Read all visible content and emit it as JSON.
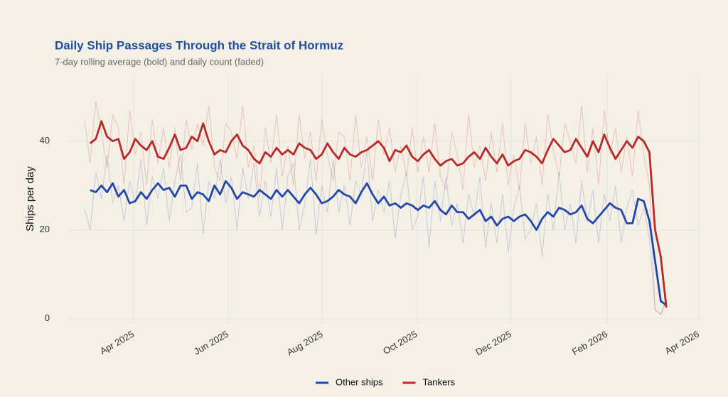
{
  "chart_data": {
    "type": "line",
    "title": "Daily Ship Passages Through the Strait of Hormuz",
    "subtitle": "7-day rolling average (bold) and daily count (faded)",
    "y_label": "Ships per day",
    "x": [
      2025.16,
      2025.17,
      2025.18,
      2025.19,
      2025.2,
      2025.21,
      2025.22,
      2025.23,
      2025.24,
      2025.25,
      2025.26,
      2025.27,
      2025.28,
      2025.29,
      2025.3,
      2025.31,
      2025.32,
      2025.33,
      2025.34,
      2025.35,
      2025.36,
      2025.37,
      2025.38,
      2025.39,
      2025.4,
      2025.41,
      2025.42,
      2025.43,
      2025.44,
      2025.45,
      2025.46,
      2025.47,
      2025.48,
      2025.49,
      2025.5,
      2025.51,
      2025.52,
      2025.53,
      2025.54,
      2025.55,
      2025.56,
      2025.57,
      2025.58,
      2025.59,
      2025.6,
      2025.61,
      2025.62,
      2025.63,
      2025.64,
      2025.65,
      2025.66,
      2025.67,
      2025.68,
      2025.69,
      2025.7,
      2025.71,
      2025.72,
      2025.73,
      2025.74,
      2025.75,
      2025.76,
      2025.77,
      2025.78,
      2025.79,
      2025.8,
      2025.81,
      2025.82,
      2025.83,
      2025.84,
      2025.85,
      2025.86,
      2025.87,
      2025.88,
      2025.89,
      2025.9,
      2025.91,
      2025.92,
      2025.93,
      2025.94,
      2025.95,
      2025.96,
      2025.97,
      2025.98,
      2025.99,
      2026.0,
      2026.01,
      2026.02,
      2026.03,
      2026.04,
      2026.05,
      2026.06,
      2026.07,
      2026.08,
      2026.09,
      2026.1,
      2026.11,
      2026.12,
      2026.13,
      2026.14,
      2026.15,
      2026.16,
      2026.17,
      2026.18,
      2026.19
    ],
    "series": [
      {
        "name": "Other ships",
        "color": "#2148a8",
        "values": [
          null,
          29,
          28.5,
          30,
          28.5,
          30.5,
          27.5,
          29,
          26,
          26.5,
          28.5,
          27,
          29,
          30.5,
          29,
          29.5,
          27.5,
          30,
          30,
          27,
          28.5,
          28,
          26.5,
          30,
          28,
          31,
          29.5,
          27,
          28.5,
          28,
          27.5,
          29,
          28,
          27,
          29,
          27.5,
          29,
          27.5,
          26,
          28,
          29.5,
          28,
          26,
          26.5,
          27.5,
          29,
          28,
          27.5,
          26,
          28.5,
          30.5,
          28,
          26,
          27.5,
          25.5,
          26,
          25,
          26,
          25.5,
          24.5,
          25.5,
          25,
          26.5,
          24.5,
          23.5,
          25.5,
          24,
          24,
          22.5,
          23.5,
          24.5,
          22,
          23,
          21,
          22.5,
          23,
          22,
          23,
          23.5,
          22,
          20,
          22.5,
          24,
          23,
          25,
          24.5,
          23.5,
          24,
          25.5,
          22.5,
          21.5,
          23,
          24.5,
          26,
          25,
          24.5,
          21.5,
          21.5,
          27,
          26.5,
          22,
          13,
          4,
          3
        ],
        "daily": [
          25,
          20,
          33,
          27,
          37,
          26,
          30,
          22,
          31,
          26,
          36,
          21,
          32,
          27,
          34,
          22,
          31,
          37,
          24,
          25,
          35,
          19,
          31,
          27,
          36,
          26,
          32,
          20,
          34,
          27,
          35,
          23,
          31,
          23,
          34,
          20,
          32,
          35,
          20,
          26,
          36,
          19,
          30,
          24,
          36,
          24,
          30,
          21,
          31,
          28,
          38,
          22,
          29,
          24,
          31,
          18,
          28,
          33,
          20,
          23,
          32,
          16,
          31,
          22,
          32,
          21,
          26,
          17,
          28,
          23,
          32,
          16,
          26,
          17,
          28,
          15,
          25,
          30,
          18,
          20,
          26,
          14,
          28,
          20,
          33,
          20,
          26,
          17,
          31,
          22,
          29,
          17,
          28,
          22,
          30,
          17,
          25,
          29,
          21,
          25,
          18,
          2,
          1,
          4
        ]
      },
      {
        "name": "Tankers",
        "color": "#b82a2a",
        "values": [
          null,
          39.5,
          40.5,
          44.5,
          41,
          40,
          40.5,
          36,
          37.5,
          40.5,
          39,
          38,
          40,
          36.5,
          36,
          38.5,
          41.5,
          38,
          38.5,
          41,
          40,
          44,
          40,
          37,
          38,
          37.5,
          40,
          41.5,
          39,
          38,
          36,
          35,
          37.5,
          36.5,
          38.5,
          37,
          38,
          37,
          39.5,
          38.5,
          38,
          36,
          37,
          39.5,
          37.5,
          36,
          38.5,
          37,
          36.5,
          37.5,
          38,
          39,
          40,
          38.5,
          35.5,
          38,
          37.5,
          39,
          36.5,
          35.5,
          37,
          38,
          36,
          34.5,
          35.5,
          36,
          34.5,
          35,
          36.5,
          37.5,
          36,
          38.5,
          36.5,
          35,
          37,
          34.5,
          35.5,
          36,
          38,
          37.5,
          36.5,
          35,
          38,
          40.5,
          39,
          37.5,
          38,
          40.5,
          38.5,
          36.5,
          40,
          37.5,
          41.5,
          38.5,
          36,
          38,
          40,
          38.5,
          41,
          40,
          37.5,
          20,
          14,
          2.5
        ],
        "daily": [
          45,
          35,
          49,
          42,
          34,
          46,
          43,
          30,
          47,
          37,
          42,
          30,
          45,
          35,
          43,
          34,
          43,
          31,
          45,
          38,
          44,
          39,
          48,
          34,
          31,
          44,
          42,
          36,
          48,
          34,
          39,
          27,
          43,
          35,
          46,
          32,
          39,
          30,
          46,
          36,
          42,
          31,
          45,
          37,
          31,
          42,
          41,
          31,
          46,
          34,
          41,
          31,
          45,
          37,
          43,
          33,
          39,
          32,
          43,
          33,
          41,
          33,
          44,
          32,
          29,
          42,
          37,
          29,
          46,
          34,
          39,
          31,
          42,
          33,
          44,
          30,
          37,
          29,
          44,
          35,
          41,
          30,
          46,
          38,
          32,
          44,
          40,
          35,
          48,
          33,
          43,
          30,
          47,
          37,
          43,
          33,
          41,
          32,
          47,
          37,
          30,
          2,
          1,
          4
        ]
      }
    ],
    "xlim": [
      2025.13,
      2026.25
    ],
    "xticks": [
      {
        "value": 2025.247,
        "label": "Apr 2025"
      },
      {
        "value": 2025.414,
        "label": "Jun 2025"
      },
      {
        "value": 2025.581,
        "label": "Aug 2025"
      },
      {
        "value": 2025.748,
        "label": "Oct 2025"
      },
      {
        "value": 2025.915,
        "label": "Dec 2025"
      },
      {
        "value": 2026.085,
        "label": "Feb 2026"
      },
      {
        "value": 2026.247,
        "label": "Apr 2026"
      }
    ],
    "ylim": [
      -1,
      55
    ],
    "yticks": [
      0,
      20,
      40
    ],
    "grid": true,
    "legend": "bottom"
  }
}
